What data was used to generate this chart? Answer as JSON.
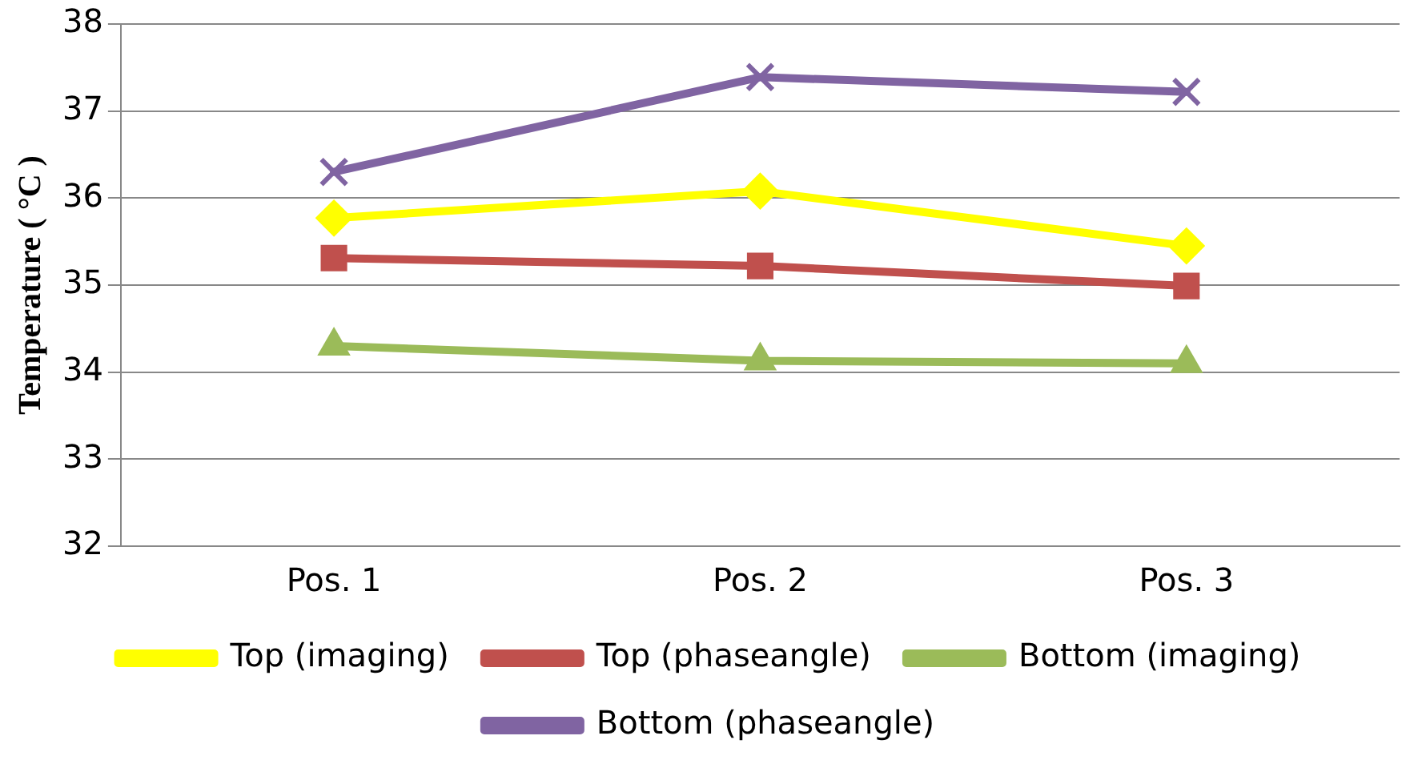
{
  "chart_data": {
    "type": "line",
    "ylabel": "Temperature ( °C )",
    "categories": [
      "Pos. 1",
      "Pos. 2",
      "Pos. 3"
    ],
    "series": [
      {
        "name": "Top (imaging)",
        "color": "#ffff00",
        "marker": "diamond",
        "values": [
          35.77,
          36.08,
          35.45
        ]
      },
      {
        "name": "Top (phaseangle)",
        "color": "#c0504d",
        "marker": "square",
        "values": [
          35.31,
          35.22,
          34.99
        ]
      },
      {
        "name": "Bottom (imaging)",
        "color": "#9bbb59",
        "marker": "triangle",
        "values": [
          34.3,
          34.13,
          34.1
        ]
      },
      {
        "name": "Bottom (phaseangle)",
        "color": "#8064a2",
        "marker": "cross",
        "values": [
          36.3,
          37.39,
          37.22
        ]
      }
    ],
    "ylim": [
      32,
      38
    ],
    "yticks": [
      32,
      33,
      34,
      35,
      36,
      37,
      38
    ],
    "grid": "y",
    "legend": "bottom"
  }
}
